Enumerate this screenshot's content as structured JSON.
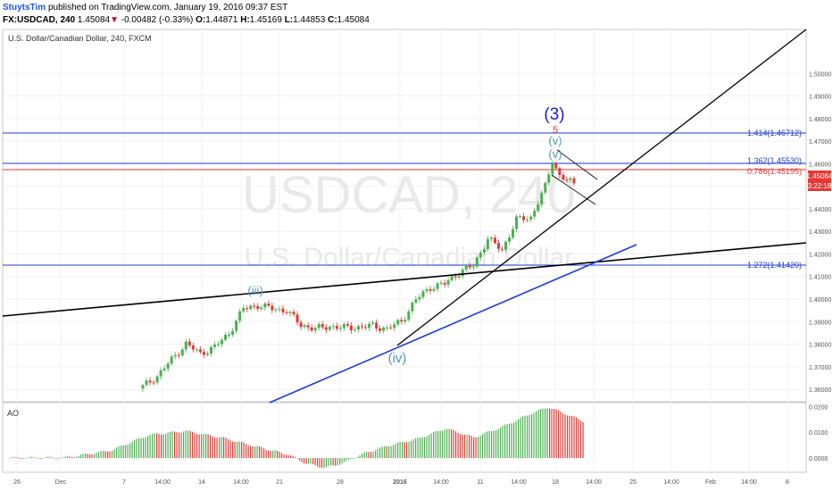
{
  "header": {
    "author": "StuytsTim",
    "published": "published on TradingView.com, January 19, 2016 09:37 EST",
    "symbol_interval": "FX:USDCAD, 240",
    "last": "1.45084",
    "arrow": "▼",
    "change": "-0.00482 (-0.33%)",
    "open_label": "O:",
    "open": "1.44871",
    "high_label": "H:",
    "high": "1.45169",
    "low_label": "L:",
    "low": "1.44853",
    "close_label": "C:",
    "close": "1.45084"
  },
  "chart": {
    "pane_title": "U.S. Dollar/Canadian Dollar, 240, FXCM",
    "watermark_symbol": "USDCAD, 240",
    "watermark_name": "U.S. Dollar/Canadian Dollar",
    "price_tag": "1.45084",
    "countdown_tag": "3:22:18",
    "fib_labels": [
      "1.414(1.46712)",
      "1.362(1.45530)",
      "0.786(1.45195)",
      "1.272(1.41420)"
    ],
    "wave_labels": [
      "(3)",
      "5",
      "(v)",
      "(v)",
      "(iii)",
      "(iv)"
    ],
    "ao_label": "AO",
    "colors": {
      "up": "#4caf50",
      "down": "#e53935",
      "fib": "#1e3bd6",
      "fib_red": "#e53935",
      "trend": "#000000",
      "trend_blue": "#1e3bd6",
      "wave_blue": "#1c1cc8",
      "wave_teal": "#4f9bb4"
    }
  },
  "chart_data": [
    {
      "type": "candlestick",
      "title": "U.S. Dollar/Canadian Dollar, 240, FXCM",
      "xlabel": "",
      "ylabel": "",
      "ylim": [
        1.3545,
        1.5195
      ],
      "ticks": [
        1.36,
        1.37,
        1.38,
        1.39,
        1.4,
        1.41,
        1.42,
        1.43,
        1.44,
        1.45,
        1.46,
        1.47,
        1.48,
        1.49,
        1.5
      ],
      "tick_labels": [
        "1.36000",
        "1.37000",
        "1.38000",
        "1.39000",
        "1.40000",
        "1.41000",
        "1.42000",
        "1.43000",
        "1.44000",
        "1.45000",
        "1.46000",
        "1.47000",
        "1.48000",
        "1.49000",
        "1.50000"
      ],
      "x_labels": [
        "26",
        "Dec",
        "7",
        "14:00",
        "14",
        "14:00",
        "21",
        "28",
        "2016",
        "14:00",
        "11",
        "14:00",
        "18",
        "14:00",
        "25",
        "14:00",
        "Feb",
        "14:00",
        "8"
      ],
      "fib_levels": [
        1.46712,
        1.4553,
        1.45195,
        1.4142
      ],
      "close_path": [
        [
          0,
          1.3612
        ],
        [
          2,
          1.3658
        ],
        [
          4,
          1.3732
        ],
        [
          6,
          1.3802
        ],
        [
          8,
          1.3758
        ],
        [
          10,
          1.3788
        ],
        [
          12,
          1.3848
        ],
        [
          14,
          1.3958
        ],
        [
          16,
          1.3972
        ],
        [
          18,
          1.3958
        ],
        [
          20,
          1.3948
        ],
        [
          22,
          1.3885
        ],
        [
          24,
          1.3868
        ],
        [
          26,
          1.3879
        ],
        [
          28,
          1.3873
        ],
        [
          30,
          1.3875
        ],
        [
          32,
          1.3882
        ],
        [
          34,
          1.3868
        ],
        [
          36,
          1.3902
        ],
        [
          38,
          1.3998
        ],
        [
          40,
          1.4052
        ],
        [
          42,
          1.4068
        ],
        [
          44,
          1.4118
        ],
        [
          46,
          1.4148
        ],
        [
          48,
          1.4268
        ],
        [
          50,
          1.4218
        ],
        [
          52,
          1.4352
        ],
        [
          54,
          1.4362
        ],
        [
          56,
          1.4498
        ],
        [
          57,
          1.4612
        ],
        [
          58,
          1.4548
        ],
        [
          60,
          1.4508
        ]
      ]
    },
    {
      "type": "bar",
      "title": "AO",
      "ylim": [
        -0.0055,
        0.0215
      ],
      "ticks": [
        0.0,
        0.01,
        0.02
      ],
      "tick_labels": [
        "0.0000",
        "0.0100",
        "0.0200"
      ],
      "shape": [
        [
          0,
          0.0
        ],
        [
          6,
          0.0002
        ],
        [
          11,
          0.003
        ],
        [
          15,
          0.009
        ],
        [
          19,
          0.0105
        ],
        [
          23,
          0.0078
        ],
        [
          26,
          0.005
        ],
        [
          28,
          0.0032
        ],
        [
          30,
          0.0014
        ],
        [
          32,
          -0.0022
        ],
        [
          34,
          -0.0038
        ],
        [
          36,
          -0.0018
        ],
        [
          38,
          0.0016
        ],
        [
          41,
          0.005
        ],
        [
          44,
          0.0075
        ],
        [
          47,
          0.0115
        ],
        [
          50,
          0.008
        ],
        [
          53,
          0.012
        ],
        [
          56,
          0.017
        ],
        [
          58,
          0.0198
        ],
        [
          60,
          0.017
        ],
        [
          62,
          0.014
        ]
      ]
    }
  ]
}
